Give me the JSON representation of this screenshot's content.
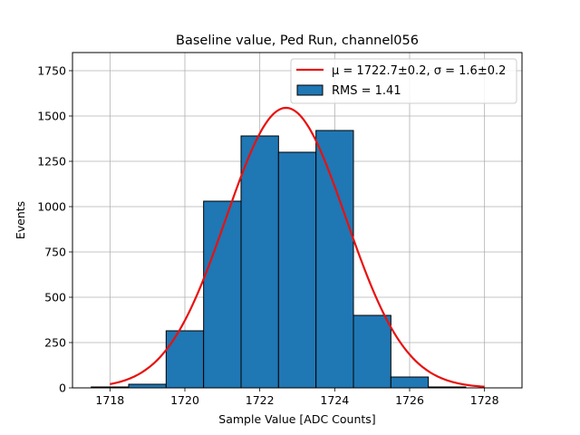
{
  "chart_data": {
    "type": "bar",
    "title": "Baseline value, Ped Run, channel056",
    "xlabel": "Sample Value [ADC Counts]",
    "ylabel": "Events",
    "xlim": [
      1717.0,
      1729.0
    ],
    "ylim": [
      0,
      1850
    ],
    "xticks": [
      1718,
      1720,
      1722,
      1724,
      1726,
      1728
    ],
    "yticks": [
      0,
      250,
      500,
      750,
      1000,
      1250,
      1500,
      1750
    ],
    "grid": true,
    "legend_position": "top-right",
    "bins": [
      {
        "left": 1717.5,
        "right": 1718.5,
        "value": 5
      },
      {
        "left": 1718.5,
        "right": 1719.5,
        "value": 20
      },
      {
        "left": 1719.5,
        "right": 1720.5,
        "value": 315
      },
      {
        "left": 1720.5,
        "right": 1721.5,
        "value": 1030
      },
      {
        "left": 1721.5,
        "right": 1722.5,
        "value": 1390
      },
      {
        "left": 1722.5,
        "right": 1723.5,
        "value": 1300
      },
      {
        "left": 1723.5,
        "right": 1724.5,
        "value": 1420
      },
      {
        "left": 1724.5,
        "right": 1725.5,
        "value": 400
      },
      {
        "left": 1725.5,
        "right": 1726.5,
        "value": 60
      },
      {
        "left": 1726.5,
        "right": 1727.5,
        "value": 5
      }
    ],
    "fit": {
      "name": "μ = 1722.7±0.2, σ = 1.6±0.2",
      "mu": 1722.7,
      "sigma": 1.6,
      "amplitude": 1545,
      "x_range": [
        1718.0,
        1728.0
      ],
      "color": "#e8110f"
    },
    "histogram": {
      "name": "RMS = 1.41",
      "color": "#1f77b4",
      "edge_color": "#000000"
    }
  }
}
